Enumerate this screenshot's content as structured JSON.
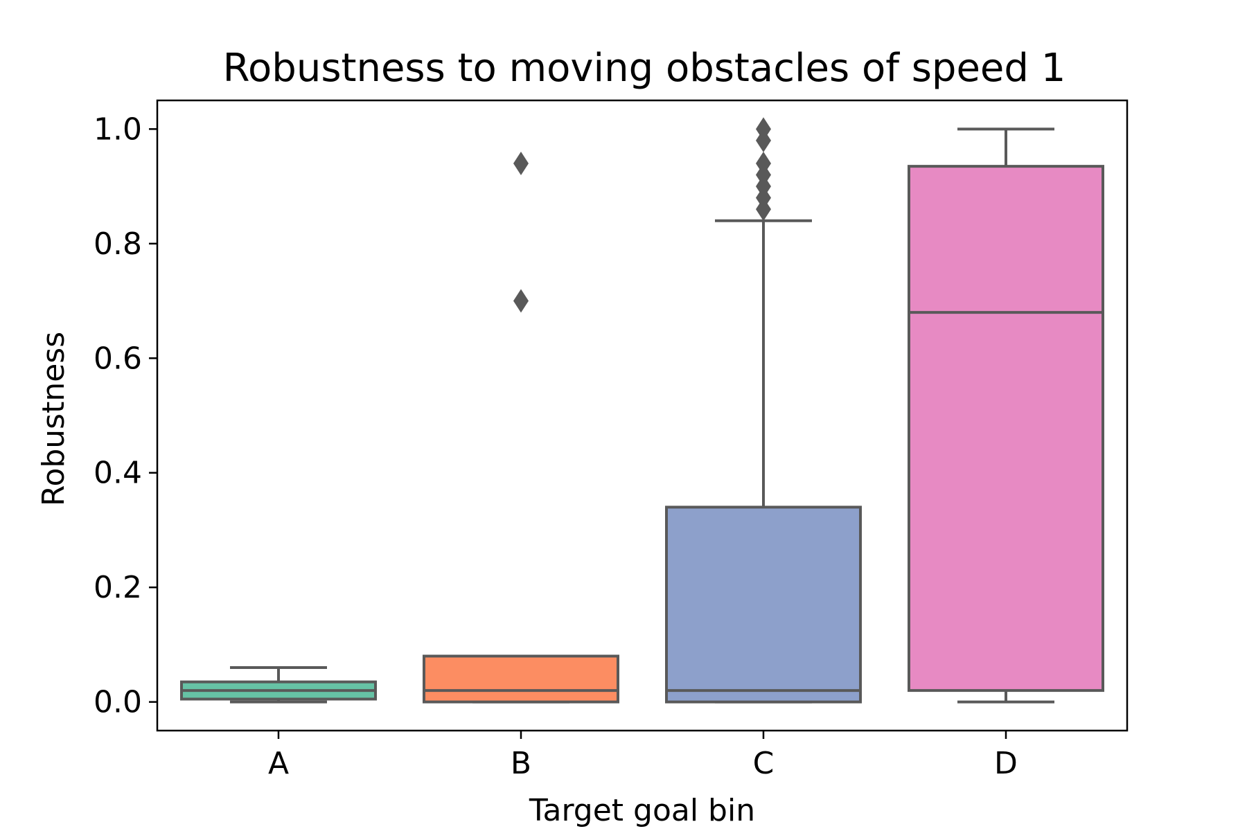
{
  "chart_data": {
    "type": "box",
    "title": "Robustness to moving obstacles of speed 1",
    "xlabel": "Target goal bin",
    "ylabel": "Robustness",
    "ylim": [
      -0.05,
      1.05
    ],
    "yticks": [
      0.0,
      0.2,
      0.4,
      0.6,
      0.8,
      1.0
    ],
    "ytick_labels": [
      "0.0",
      "0.2",
      "0.4",
      "0.6",
      "0.8",
      "1.0"
    ],
    "categories": [
      "A",
      "B",
      "C",
      "D"
    ],
    "grid": false,
    "legend": "none",
    "line_color": "#595959",
    "boxes": [
      {
        "category": "A",
        "color": "#66c2a5",
        "whisker_low": 0.0,
        "q1": 0.005,
        "median": 0.02,
        "q3": 0.035,
        "whisker_high": 0.06,
        "outliers": []
      },
      {
        "category": "B",
        "color": "#fc8d62",
        "whisker_low": 0.0,
        "q1": 0.0,
        "median": 0.02,
        "q3": 0.08,
        "whisker_high": 0.08,
        "outliers": [
          0.7,
          0.94
        ]
      },
      {
        "category": "C",
        "color": "#8da0cb",
        "whisker_low": 0.0,
        "q1": 0.0,
        "median": 0.02,
        "q3": 0.34,
        "whisker_high": 0.84,
        "outliers": [
          0.86,
          0.88,
          0.9,
          0.92,
          0.94,
          0.98,
          1.0
        ]
      },
      {
        "category": "D",
        "color": "#e78ac3",
        "whisker_low": 0.0,
        "q1": 0.02,
        "median": 0.68,
        "q3": 0.935,
        "whisker_high": 1.0,
        "outliers": []
      }
    ]
  }
}
